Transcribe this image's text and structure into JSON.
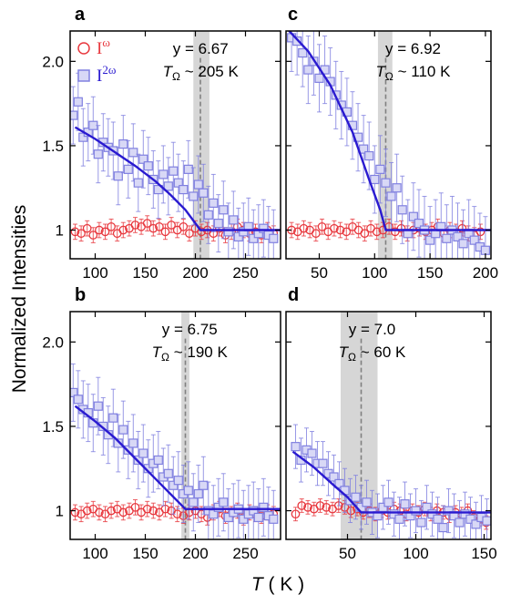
{
  "figure": {
    "ylabel": "Normalized Intensities",
    "xlabel_var": "T",
    "xlabel_unit": " ( K )"
  },
  "legend": {
    "red_label": "I",
    "red_sup": "ω",
    "blue_label": "I",
    "blue_sup": "2ω"
  },
  "colors": {
    "red": "#e8393f",
    "blue_marker": "#8080e0",
    "fit": "#2a1ad0",
    "band": "#c8c8c8",
    "dash": "#808080"
  },
  "chart_data": [
    {
      "id": "a",
      "type": "scatter",
      "label": "a",
      "anno_y": "y = 6.67",
      "anno_T": "T",
      "anno_sub": "Ω",
      "anno_val": " ~ 205 K",
      "xlim": [
        75,
        285
      ],
      "ylim": [
        0.83,
        2.18
      ],
      "xticks": [
        100,
        150,
        200,
        250
      ],
      "yticks": [
        1.0,
        1.5,
        2.0
      ],
      "ytick_labels": [
        "1",
        "1.5",
        "2.0"
      ],
      "T_omega": 205,
      "band": [
        198,
        214
      ],
      "fit": [
        [
          80,
          1.61
        ],
        [
          100,
          1.54
        ],
        [
          120,
          1.46
        ],
        [
          140,
          1.38
        ],
        [
          160,
          1.29
        ],
        [
          175,
          1.21
        ],
        [
          190,
          1.12
        ],
        [
          205,
          1.0
        ],
        [
          285,
          1.0
        ]
      ],
      "series": [
        {
          "name": "Iω",
          "marker": "circle",
          "start": 80,
          "step": 6,
          "err": 0.045,
          "values": [
            0.99,
            0.98,
            1.01,
            0.97,
            1.0,
            0.99,
            1.02,
            0.98,
            1.0,
            1.01,
            1.03,
            1.02,
            1.04,
            1.01,
            1.02,
            0.99,
            1.03,
            1.0,
            1.02,
            0.98,
            1.01,
            0.99,
            1.0,
            0.98,
            1.01,
            0.97,
            0.99,
            1.02,
            1.0,
            0.98,
            0.99,
            0.97,
            1.0,
            0.98,
            0.97
          ]
        },
        {
          "name": "I2ω",
          "marker": "square",
          "start": 78,
          "step": 5,
          "err": 0.17,
          "values": [
            1.68,
            1.76,
            1.55,
            1.58,
            1.62,
            1.45,
            1.52,
            1.49,
            1.47,
            1.32,
            1.51,
            1.36,
            1.46,
            1.28,
            1.42,
            1.38,
            1.3,
            1.24,
            1.33,
            1.26,
            1.35,
            1.28,
            1.24,
            1.36,
            1.2,
            1.27,
            1.22,
            1.09,
            1.16,
            1.04,
            1.12,
            0.99,
            1.06,
            0.96,
            0.99,
            1.02,
            0.95,
            0.98,
            1.01,
            0.97,
            0.95
          ]
        }
      ]
    },
    {
      "id": "c",
      "type": "scatter",
      "label": "c",
      "anno_y": "y = 6.92",
      "anno_T": "T",
      "anno_sub": "Ω",
      "anno_val": " ~ 110 K",
      "xlim": [
        20,
        205
      ],
      "ylim": [
        0.83,
        2.18
      ],
      "xticks": [
        50,
        100,
        150,
        200
      ],
      "yticks": [
        1.0,
        1.5,
        2.0
      ],
      "ytick_labels": [
        "1",
        "1.5",
        "2.0"
      ],
      "T_omega": 110,
      "band": [
        103,
        116
      ],
      "fit": [
        [
          20,
          2.2
        ],
        [
          40,
          2.06
        ],
        [
          60,
          1.86
        ],
        [
          80,
          1.58
        ],
        [
          95,
          1.3
        ],
        [
          105,
          1.12
        ],
        [
          110,
          1.0
        ],
        [
          205,
          1.0
        ]
      ],
      "series": [
        {
          "name": "Iω",
          "marker": "circle",
          "start": 25,
          "step": 5.5,
          "err": 0.045,
          "values": [
            1.0,
            0.99,
            1.01,
            1.0,
            0.98,
            1.02,
            0.99,
            1.01,
            1.0,
            0.99,
            1.02,
            1.0,
            0.98,
            1.01,
            0.99,
            1.0,
            1.02,
            0.99,
            1.01,
            0.98,
            1.0,
            1.01,
            0.99,
            1.0,
            1.02,
            0.98,
            1.0,
            0.99,
            1.01,
            0.98,
            0.97,
            0.99
          ]
        },
        {
          "name": "I2ω",
          "marker": "square",
          "start": 25,
          "step": 5,
          "err": 0.2,
          "values": [
            2.14,
            2.12,
            2.05,
            1.95,
            2.0,
            1.9,
            1.95,
            1.88,
            1.8,
            1.74,
            1.7,
            1.62,
            1.55,
            1.48,
            1.44,
            1.3,
            1.36,
            1.28,
            1.2,
            1.25,
            1.12,
            0.98,
            1.08,
            1.04,
            1.0,
            0.94,
            0.98,
            1.02,
            0.95,
            1.0,
            0.96,
            0.92,
            0.98,
            0.94,
            0.9,
            0.88
          ]
        }
      ]
    },
    {
      "id": "b",
      "type": "scatter",
      "label": "b",
      "anno_y": "y = 6.75",
      "anno_T": "T",
      "anno_sub": "Ω",
      "anno_val": " ~ 190 K",
      "xlim": [
        75,
        285
      ],
      "ylim": [
        0.83,
        2.18
      ],
      "xticks": [
        100,
        150,
        200,
        250
      ],
      "yticks": [
        1.0,
        1.5,
        2.0
      ],
      "ytick_labels": [
        "1",
        "1.5",
        "2.0"
      ],
      "T_omega": 190,
      "band": [
        186,
        194
      ],
      "fit": [
        [
          80,
          1.62
        ],
        [
          100,
          1.53
        ],
        [
          120,
          1.43
        ],
        [
          140,
          1.31
        ],
        [
          160,
          1.19
        ],
        [
          175,
          1.1
        ],
        [
          190,
          1.01
        ],
        [
          285,
          1.01
        ]
      ],
      "series": [
        {
          "name": "Iω",
          "marker": "circle",
          "start": 80,
          "step": 6,
          "err": 0.045,
          "values": [
            0.99,
            0.98,
            1.0,
            1.01,
            0.99,
            0.98,
            1.0,
            1.01,
            0.99,
            1.0,
            1.02,
            0.99,
            1.01,
            1.0,
            0.99,
            1.01,
            1.0,
            0.98,
            0.97,
            0.99,
            1.0,
            0.98,
            0.96,
            0.99,
            1.01,
            0.97,
            0.98,
            1.0,
            0.96,
            0.99,
            0.98,
            0.97,
            0.99,
            0.98,
            0.96
          ]
        },
        {
          "name": "I2ω",
          "marker": "square",
          "start": 78,
          "step": 5,
          "err": 0.17,
          "values": [
            1.7,
            1.66,
            1.6,
            1.58,
            1.52,
            1.62,
            1.5,
            1.45,
            1.55,
            1.4,
            1.48,
            1.36,
            1.4,
            1.3,
            1.34,
            1.25,
            1.28,
            1.3,
            1.2,
            1.22,
            1.15,
            1.18,
            1.1,
            1.12,
            1.05,
            1.1,
            1.15,
            1.0,
            0.98,
            1.02,
            1.05,
            0.96,
            0.99,
            1.01,
            0.95,
            0.98,
            1.0,
            0.96,
            1.02,
            0.97,
            0.95
          ]
        }
      ]
    },
    {
      "id": "d",
      "type": "scatter",
      "label": "d",
      "anno_y": "y = 7.0",
      "anno_T": "T",
      "anno_sub": "Ω",
      "anno_val": " ~ 60 K",
      "xlim": [
        5,
        155
      ],
      "ylim": [
        0.83,
        2.18
      ],
      "xticks": [
        50,
        100,
        150
      ],
      "yticks": [
        1.0,
        1.5,
        2.0
      ],
      "ytick_labels": [
        "1",
        "1.5",
        "2.0"
      ],
      "T_omega": 60,
      "band": [
        45,
        72
      ],
      "fit": [
        [
          10,
          1.35
        ],
        [
          25,
          1.26
        ],
        [
          40,
          1.15
        ],
        [
          50,
          1.08
        ],
        [
          60,
          0.99
        ],
        [
          155,
          0.99
        ]
      ],
      "series": [
        {
          "name": "Iω",
          "marker": "circle",
          "start": 12,
          "step": 4.5,
          "err": 0.04,
          "values": [
            0.98,
            1.03,
            1.02,
            1.01,
            1.03,
            1.02,
            1.01,
            1.03,
            1.02,
            1.0,
            1.01,
            0.99,
            1.0,
            0.98,
            1.0,
            0.99,
            1.01,
            1.0,
            0.98,
            1.0,
            0.99,
            1.01,
            0.98,
            1.0,
            0.99,
            0.97,
            0.99,
            0.98,
            1.0,
            0.96,
            0.95,
            0.93
          ]
        },
        {
          "name": "I2ω",
          "marker": "square",
          "start": 12,
          "step": 4,
          "err": 0.13,
          "values": [
            1.38,
            1.3,
            1.36,
            1.34,
            1.28,
            1.28,
            1.22,
            1.2,
            1.16,
            1.12,
            1.06,
            1.08,
            1.02,
            1.05,
            0.99,
            0.97,
            1.02,
            1.05,
            0.98,
            0.95,
            1.04,
            0.97,
            1.0,
            0.93,
            1.02,
            0.98,
            0.95,
            0.9,
            1.0,
            0.97,
            0.93,
            0.98,
            0.95,
            0.92,
            0.96,
            0.94
          ]
        }
      ]
    }
  ]
}
